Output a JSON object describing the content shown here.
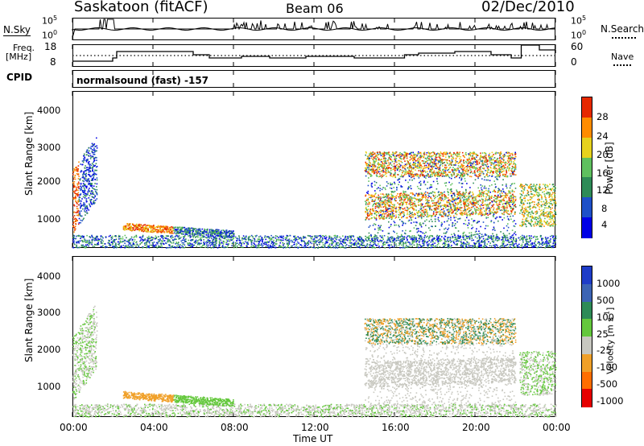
{
  "header": {
    "station": "Saskatoon (fitACF)",
    "beam": "Beam 06",
    "date": "02/Dec/2010"
  },
  "top_panel": {
    "left_label": "N.Sky",
    "right_label": "N.Search",
    "ytick_top": "10^5",
    "ytick_bottom": "10^0"
  },
  "freq_panel": {
    "left_label_1": "Freq.",
    "left_label_2": "[MHz]",
    "left_ticks": [
      "18",
      "8"
    ],
    "right_label": "Nave",
    "right_ticks": [
      "60",
      "0"
    ],
    "cpid_label": "CPID",
    "cpid_text": "normalsound (fast) -157"
  },
  "chart_data": [
    {
      "type": "heatmap",
      "title": "",
      "ylabel": "Slant Range [km]",
      "yticks": [
        1000,
        2000,
        3000,
        4000
      ],
      "ylim": [
        180,
        4600
      ],
      "xlim": [
        0,
        24
      ],
      "colorbar_label": "Power [dB]",
      "colorbar_ticks": [
        "4",
        "8",
        "12",
        "16",
        "20",
        "24",
        "28"
      ],
      "colors": [
        "#0000e6",
        "#1e50c8",
        "#2e8b57",
        "#5fc05f",
        "#e6d21e",
        "#ff8c00",
        "#e62800"
      ]
    },
    {
      "type": "heatmap",
      "title": "",
      "ylabel": "Slant Range [km]",
      "yticks": [
        1000,
        2000,
        3000,
        4000
      ],
      "ylim": [
        180,
        4600
      ],
      "xlim": [
        0,
        24
      ],
      "colorbar_label": "Velocity [m s^-1]",
      "colorbar_ticks": [
        "1000",
        "500",
        "100",
        "25",
        "-25",
        "-100",
        "-500",
        "-1000"
      ],
      "colors": [
        "#1e3cc8",
        "#3c64b4",
        "#2e8b57",
        "#64c83c",
        "#c8c8c0",
        "#f0a028",
        "#ff6e00",
        "#e60000"
      ]
    }
  ],
  "x_axis": {
    "ticks": [
      "00:00",
      "04:00",
      "08:00",
      "12:00",
      "16:00",
      "20:00",
      "00:00"
    ],
    "label": "Time UT"
  }
}
